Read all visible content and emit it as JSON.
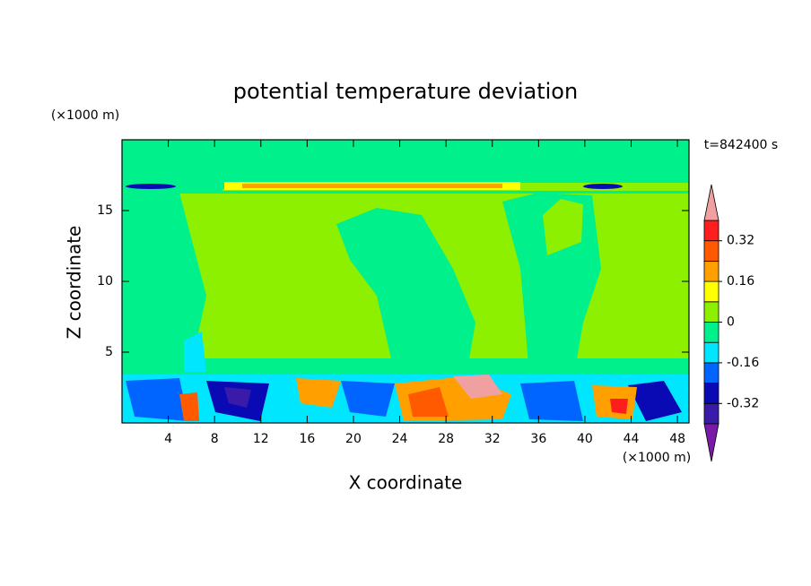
{
  "chart_data": {
    "type": "contour",
    "title": "potential temperature deviation",
    "x_label": "X coordinate",
    "y_label": "Z coordinate",
    "x_unit": "(×1000 m)",
    "y_unit": "(×1000 m)",
    "time_label": "t=842400 s",
    "xlim": [
      0,
      49
    ],
    "xticks": [
      4,
      8,
      12,
      16,
      20,
      24,
      28,
      32,
      36,
      40,
      44,
      48
    ],
    "ylim": [
      0,
      20
    ],
    "yticks": [
      5,
      10,
      15
    ],
    "colorbar": {
      "levels": [
        -0.4,
        -0.32,
        -0.24,
        -0.16,
        -0.08,
        0,
        0.08,
        0.16,
        0.24,
        0.32,
        0.4
      ],
      "colors": [
        "#7a1aa8",
        "#3a1aa8",
        "#0a0ab4",
        "#0064ff",
        "#00e6ff",
        "#00f08c",
        "#8cf000",
        "#ffff00",
        "#ffa000",
        "#ff5a00",
        "#ff1e1e",
        "#f0a0a0"
      ],
      "ticks": [
        -0.32,
        -0.16,
        0,
        0.16,
        0.32
      ]
    }
  }
}
